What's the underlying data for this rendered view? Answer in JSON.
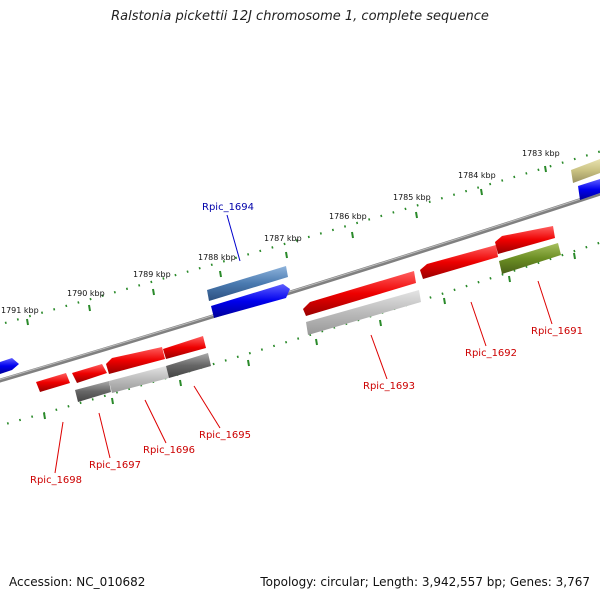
{
  "title": "Ralstonia pickettii 12J chromosome 1, complete sequence",
  "footer": {
    "accession": "Accession: NC_010682",
    "summary": "Topology: circular; Length: 3,942,557 bp; Genes: 3,767"
  },
  "kbp_ticks": [
    "1791 kbp",
    "1790 kbp",
    "1789 kbp",
    "1788 kbp",
    "1787 kbp",
    "1786 kbp",
    "1785 kbp",
    "1784 kbp",
    "1783 kbp"
  ],
  "genes": [
    {
      "label": "Rpic_1691",
      "color": "#cc0000"
    },
    {
      "label": "Rpic_1692",
      "color": "#cc0000"
    },
    {
      "label": "Rpic_1693",
      "color": "#cc0000"
    },
    {
      "label": "Rpic_1694",
      "color": "#0000aa"
    },
    {
      "label": "Rpic_1695",
      "color": "#cc0000"
    },
    {
      "label": "Rpic_1696",
      "color": "#cc0000"
    },
    {
      "label": "Rpic_1697",
      "color": "#cc0000"
    },
    {
      "label": "Rpic_1698",
      "color": "#cc0000"
    }
  ],
  "colors": {
    "backbone": "#808080",
    "tick": "#2a8a2a",
    "cds_red": "#ee0000",
    "cds_blue": "#0000ee",
    "gene_steelblue": "#4a7ab0",
    "gene_gray": "#777777",
    "gene_lightgray": "#bbbbbb",
    "gene_olive": "#6b8e23",
    "gene_khaki": "#c8c080"
  }
}
